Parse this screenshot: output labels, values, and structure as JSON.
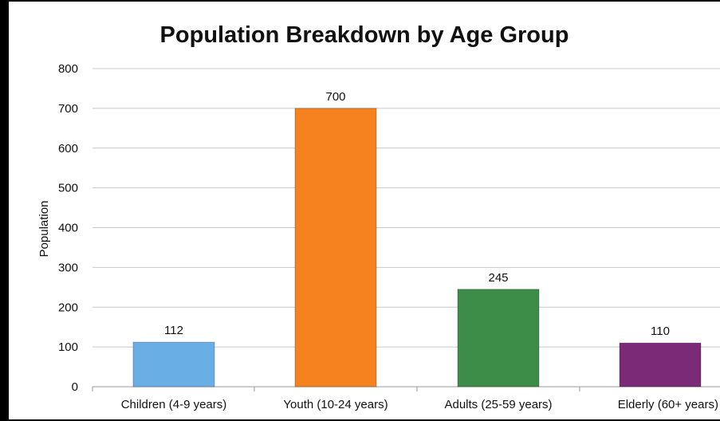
{
  "chart_data": {
    "type": "bar",
    "title": "Population Breakdown by Age Group",
    "xlabel": "",
    "ylabel": "Population",
    "categories": [
      "Children (4-9 years)",
      "Youth (10-24 years)",
      "Adults (25-59 years)",
      "Elderly (60+ years)"
    ],
    "values": [
      112,
      700,
      245,
      110
    ],
    "data_labels": [
      "112",
      "700",
      "245",
      "110"
    ],
    "colors": [
      "#6aaee6",
      "#f5821f",
      "#3d8c47",
      "#7b2a78"
    ],
    "ylim": [
      0,
      800
    ],
    "yticks": [
      0,
      100,
      200,
      300,
      400,
      500,
      600,
      700,
      800
    ],
    "ytick_labels": [
      "0",
      "100",
      "200",
      "300",
      "400",
      "500",
      "600",
      "700",
      "800"
    ],
    "grid": true,
    "legend": "none"
  }
}
